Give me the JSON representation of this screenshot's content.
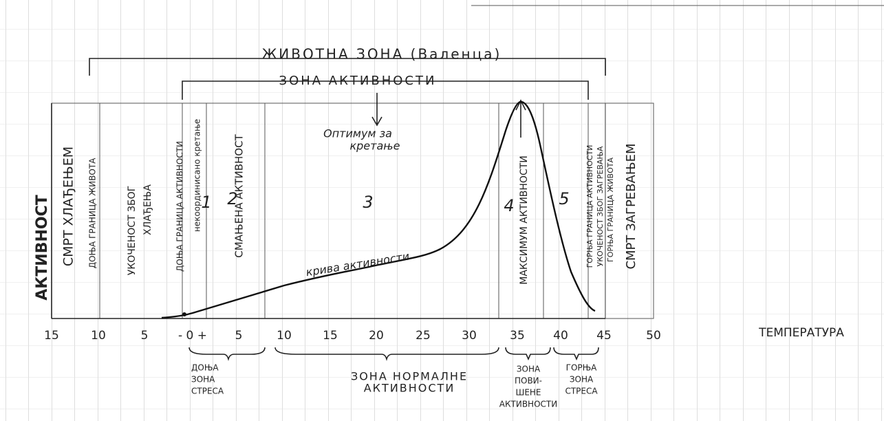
{
  "title": "ЖИВОТНА ЗОНА (Валенца)",
  "subtitle": "ЗОНА АКТИВНОСТИ",
  "x_axis_label": "ТЕМПЕРАТУРА",
  "x_ticks": [
    "15",
    "10",
    "5",
    "- 0 +",
    "5",
    "10",
    "15",
    "20",
    "25",
    "30",
    "35",
    "40",
    "45",
    "50"
  ],
  "vertical_labels": [
    "АКТИВНОСТ",
    "СМРТ ХЛАЂЕЊЕМ",
    "ДОЊА ГРАНИЦА ЖИВОТА",
    "УКОЧЕНОСТ ЗБОГ",
    "ХЛАЂЕЊА",
    "ДОЊА ГРАНИЦА АКТИВНОСТИ",
    "некоординисано кретање",
    "СМАЊЕНА АКТИВНОСТ",
    "МАКСИМУМ АКТИВНОСТИ",
    "ГОРЊА ГРАНИЦА АКТИВНОСТИ",
    "УКОЧЕНОСТ ЗБОГ ЗАГРЕВАЊА",
    "ГОРЊА ГРАНИЦА ЖИВОТА",
    "СМРТ ЗАГРЕВАЊЕМ"
  ],
  "zone_numbers": [
    "1",
    "2",
    "3",
    "4",
    "5"
  ],
  "optimum": [
    "Оптимум за",
    "кретање"
  ],
  "curve_label": "крива активности",
  "bottom_zones": [
    [
      "ДОЊА",
      "ЗОНА",
      "СТРЕСА"
    ],
    [
      "ЗОНА НОРМАЛНЕ",
      "АКТИВНОСТИ"
    ],
    [
      "ЗОНА",
      "ПОВИ-",
      "ШЕНЕ",
      "АКТИВНОСТИ"
    ],
    [
      "ГОРЊА",
      "ЗОНА",
      "СТРЕСА"
    ]
  ]
}
